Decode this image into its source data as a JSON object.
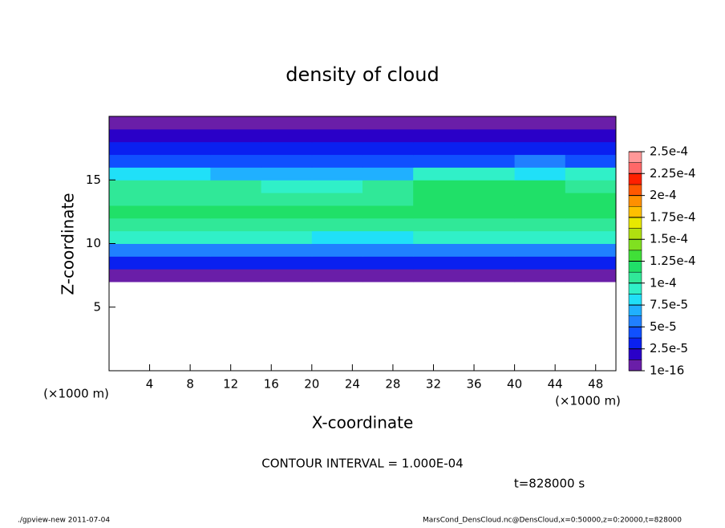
{
  "chart_data": {
    "type": "heatmap",
    "title": "density of cloud",
    "xlabel": "X-coordinate",
    "ylabel": "Z-coordinate",
    "xunit": "(×1000 m)",
    "yunit": "(×1000 m)",
    "xlim": [
      0,
      50
    ],
    "ylim": [
      0,
      20
    ],
    "xticks": [
      4,
      8,
      12,
      16,
      20,
      24,
      28,
      32,
      36,
      40,
      44,
      48
    ],
    "yticks": [
      5,
      10,
      15
    ],
    "x_edges": [
      0,
      5,
      10,
      15,
      20,
      25,
      30,
      35,
      40,
      45,
      50
    ],
    "y_edges": [
      7,
      8,
      9,
      10,
      11,
      12,
      13,
      14,
      15,
      16,
      17,
      18,
      19,
      20
    ],
    "values": [
      [
        1e-06,
        1e-06,
        1e-06,
        1e-06,
        1e-06,
        1e-06,
        1e-06,
        1e-06,
        1e-06,
        1e-06
      ],
      [
        3e-05,
        3e-05,
        3e-05,
        3e-05,
        3e-05,
        3e-05,
        3e-05,
        3e-05,
        3e-05,
        3e-05
      ],
      [
        6e-05,
        6e-05,
        6e-05,
        6e-05,
        6e-05,
        6e-05,
        6e-05,
        6e-05,
        6e-05,
        6e-05
      ],
      [
        9e-05,
        9e-05,
        9.5e-05,
        9e-05,
        8.5e-05,
        8.5e-05,
        9e-05,
        9.5e-05,
        9.5e-05,
        9e-05
      ],
      [
        0.00011,
        0.00011,
        0.00011,
        0.00011,
        0.00011,
        0.000105,
        0.00011,
        0.00011,
        0.00011,
        0.00011
      ],
      [
        0.000115,
        0.000115,
        0.000115,
        0.000115,
        0.000115,
        0.000115,
        0.00012,
        0.00012,
        0.00012,
        0.00012
      ],
      [
        0.00011,
        0.00011,
        0.00011,
        0.00011,
        0.00011,
        0.00011,
        0.00012,
        0.00012,
        0.00012,
        0.00012
      ],
      [
        0.000105,
        0.000105,
        0.000105,
        0.0001,
        9.5e-05,
        0.000105,
        0.00012,
        0.00012,
        0.000115,
        0.00011
      ],
      [
        8e-05,
        8e-05,
        7e-05,
        7e-05,
        6.5e-05,
        7e-05,
        9e-05,
        0.0001,
        8e-05,
        9e-05
      ],
      [
        5e-05,
        5e-05,
        5e-05,
        5e-05,
        5e-05,
        5e-05,
        5e-05,
        5e-05,
        6e-05,
        5e-05
      ],
      [
        3.5e-05,
        3.5e-05,
        3.5e-05,
        3.5e-05,
        3.5e-05,
        3.5e-05,
        3.5e-05,
        3.5e-05,
        3.5e-05,
        3.5e-05
      ],
      [
        2.2e-05,
        2.2e-05,
        2.2e-05,
        2.2e-05,
        2.2e-05,
        2.2e-05,
        2.2e-05,
        2.2e-05,
        2.2e-05,
        2.2e-05
      ],
      [
        1.2e-05,
        1.2e-05,
        1.2e-05,
        1.2e-05,
        1.2e-05,
        1.2e-05,
        1.2e-05,
        1.2e-05,
        1.2e-05,
        1.2e-05
      ]
    ],
    "colorbar": {
      "levels": [
        {
          "value": 1e-16,
          "label": "1e-16"
        },
        {
          "value": 2.5e-05,
          "label": "2.5e-5"
        },
        {
          "value": 5e-05,
          "label": "5e-5"
        },
        {
          "value": 7.5e-05,
          "label": "7.5e-5"
        },
        {
          "value": 0.0001,
          "label": "1e-4"
        },
        {
          "value": 0.000125,
          "label": "1.25e-4"
        },
        {
          "value": 0.00015,
          "label": "1.5e-4"
        },
        {
          "value": 0.000175,
          "label": "1.75e-4"
        },
        {
          "value": 0.0002,
          "label": "2e-4"
        },
        {
          "value": 0.000225,
          "label": "2.25e-4"
        },
        {
          "value": 0.00025,
          "label": "2.5e-4"
        }
      ],
      "colors": [
        "#6a1ea8",
        "#2a00c8",
        "#0a20f0",
        "#1050ff",
        "#2080ff",
        "#20b0ff",
        "#20e0f8",
        "#30f0c8",
        "#30e898",
        "#20e068",
        "#40e038",
        "#80e020",
        "#b0e010",
        "#e8e800",
        "#ffc000",
        "#ff9000",
        "#ff5800",
        "#ff2000",
        "#ff6868",
        "#ff9898"
      ]
    },
    "contour_interval": "CONTOUR INTERVAL = 1.000E-04",
    "time": "t=828000 s",
    "footer_left": "./gpview-new  2011-07-04",
    "footer_right": "MarsCond_DensCloud.nc@DensCloud,x=0:50000,z=0:20000,t=828000"
  }
}
